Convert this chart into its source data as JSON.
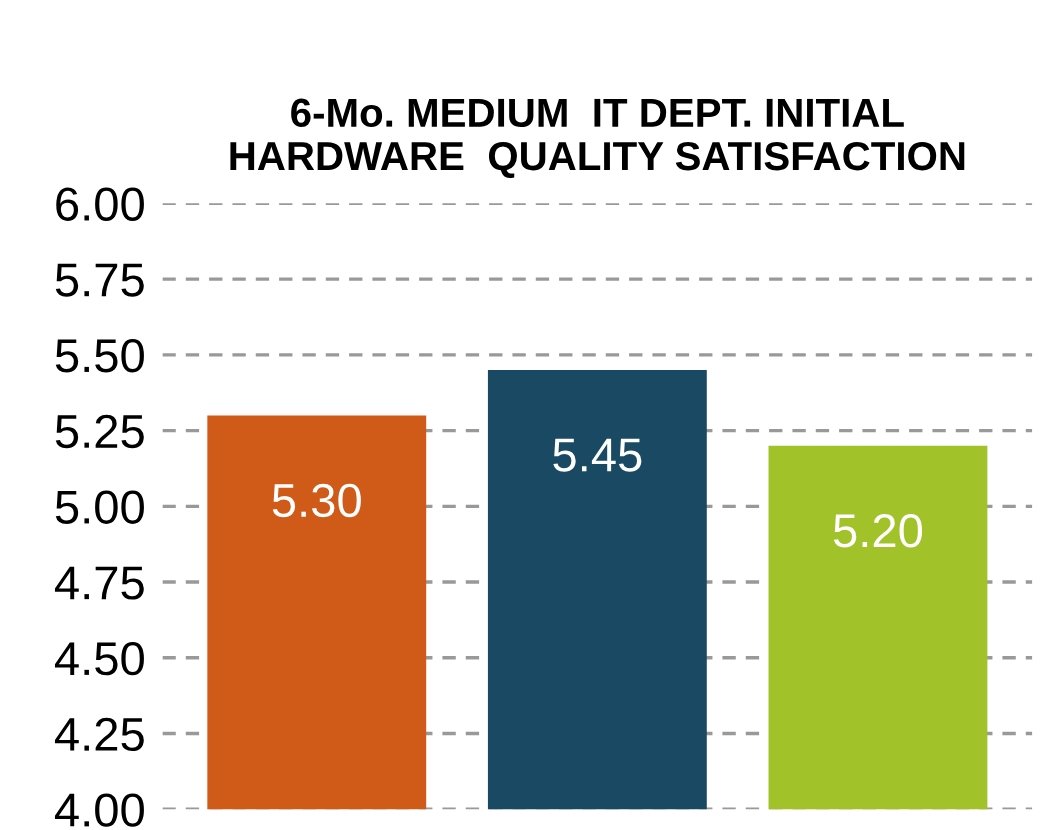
{
  "chart_data": {
    "type": "bar",
    "title": "6-Mo. MEDIUM  IT DEPT. INITIAL\nHARDWARE  QUALITY SATISFACTION",
    "categories": [
      null,
      null,
      null
    ],
    "values": [
      5.3,
      5.45,
      5.2
    ],
    "colors": [
      "#d05a17",
      "#1a4a63",
      "#a2c22a"
    ],
    "value_labels": [
      "5.30",
      "5.45",
      "5.20"
    ],
    "ylim": [
      4.0,
      6.0
    ],
    "yticks": [
      {
        "value": 4.0,
        "label": "4.00"
      },
      {
        "value": 4.25,
        "label": "4.25"
      },
      {
        "value": 4.5,
        "label": "4.50"
      },
      {
        "value": 4.75,
        "label": "4.75"
      },
      {
        "value": 5.0,
        "label": "5.00"
      },
      {
        "value": 5.25,
        "label": "5.25"
      },
      {
        "value": 5.5,
        "label": "5.50"
      },
      {
        "value": 5.75,
        "label": "5.75"
      },
      {
        "value": 6.0,
        "label": "6.00"
      }
    ],
    "grid": "y",
    "legend": false
  }
}
